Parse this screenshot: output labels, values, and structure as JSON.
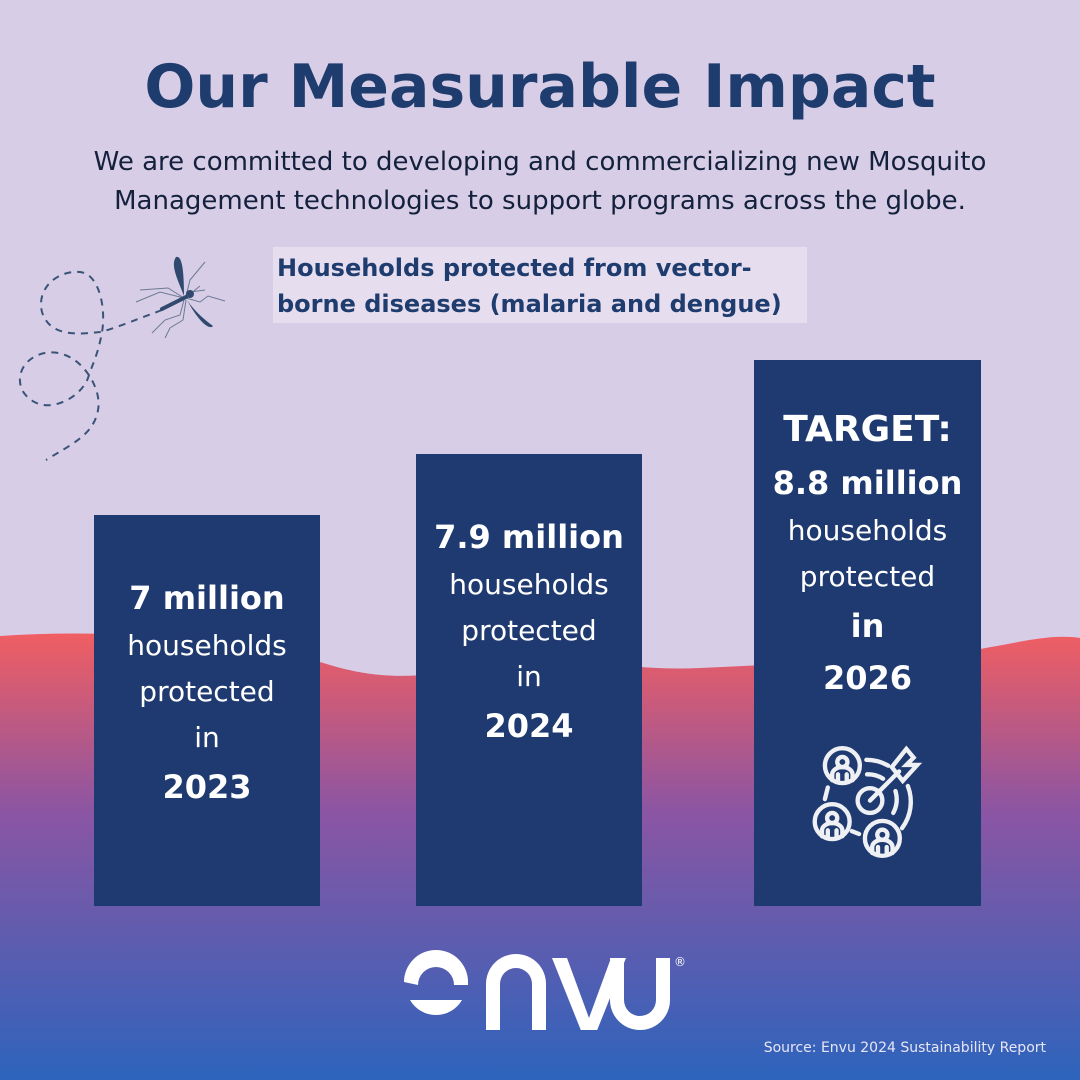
{
  "title": "Our Measurable Impact",
  "subtitle": "We are committed to developing and commercializing new Mosquito Management technologies to support programs across the globe.",
  "section_label": "Households protected from vector-borne diseases (malaria and dengue)",
  "bars": [
    {
      "value": "7 million",
      "desc1": "households",
      "desc2": "protected",
      "in": "in",
      "year": "2023",
      "value_millions": 7
    },
    {
      "value": "7.9 million",
      "desc1": "households",
      "desc2": "protected",
      "in": "in",
      "year": "2024",
      "value_millions": 7.9
    },
    {
      "prefix": "TARGET:",
      "value": "8.8 million",
      "desc1": "households",
      "desc2": "protected",
      "in": "in",
      "year": "2026",
      "value_millions": 8.8
    }
  ],
  "icons": {
    "decor": "mosquito-flight-icon",
    "target": "target-audience-icon"
  },
  "logo": {
    "text": "envu",
    "mark": "®"
  },
  "source": "Source: Envu 2024 Sustainability Report",
  "colors": {
    "background": "#d8cde6",
    "bar": "#1f3a70",
    "title": "#1f3c6e",
    "gradient_top": "#ee5d62",
    "gradient_mid": "#8b55a3",
    "gradient_bottom": "#2d64bc"
  }
}
